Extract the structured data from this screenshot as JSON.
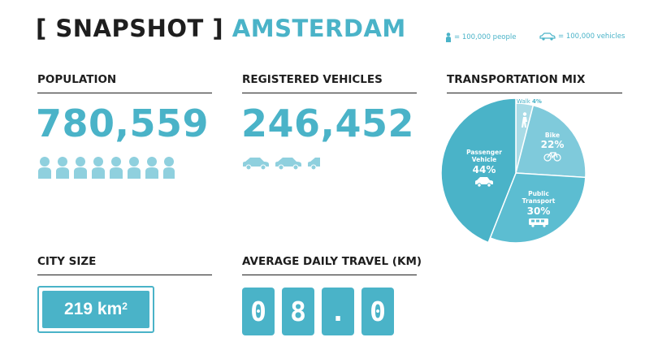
{
  "title": {
    "bracket": "[ SNAPSHOT ]",
    "city": "AMSTERDAM"
  },
  "legend": {
    "person": "= 100,000 people",
    "vehicle": "= 100,000 vehicles"
  },
  "population": {
    "heading": "POPULATION",
    "value": "780,559",
    "icon_count": 7.8
  },
  "vehicles": {
    "heading": "REGISTERED VEHICLES",
    "value": "246,452",
    "icon_count": 2.5
  },
  "transport": {
    "heading": "TRANSPORTATION MIX"
  },
  "city_size": {
    "heading": "CITY SIZE",
    "value": "219 km",
    "unit_sup": "2"
  },
  "travel": {
    "heading": "AVERAGE DAILY TRAVEL (KM)",
    "digits": [
      "0",
      "8",
      ".",
      "0"
    ]
  },
  "colors": {
    "accent": "#4ab3c8",
    "dark": "#1e1e1e",
    "walk": "#a9dbe6",
    "bike": "#7fcadb",
    "public": "#5cbdd1",
    "passenger": "#4ab3c8"
  },
  "chart_data": {
    "type": "pie",
    "title": "TRANSPORTATION MIX",
    "slices": [
      {
        "name": "Walk",
        "label_lines": [
          "Walk"
        ],
        "value": 4,
        "pct": "4%",
        "icon": "walker-icon",
        "color": "#a9dbe6"
      },
      {
        "name": "Bike",
        "label_lines": [
          "Bike"
        ],
        "value": 22,
        "pct": "22%",
        "icon": "bicycle-icon",
        "color": "#7fcadb"
      },
      {
        "name": "Public Transport",
        "label_lines": [
          "Public",
          "Transport"
        ],
        "value": 30,
        "pct": "30%",
        "icon": "bus-icon",
        "color": "#5cbdd1"
      },
      {
        "name": "Passenger Vehicle",
        "label_lines": [
          "Passenger",
          "Vehicle"
        ],
        "value": 44,
        "pct": "44%",
        "icon": "car-icon",
        "color": "#4ab3c8"
      }
    ]
  }
}
